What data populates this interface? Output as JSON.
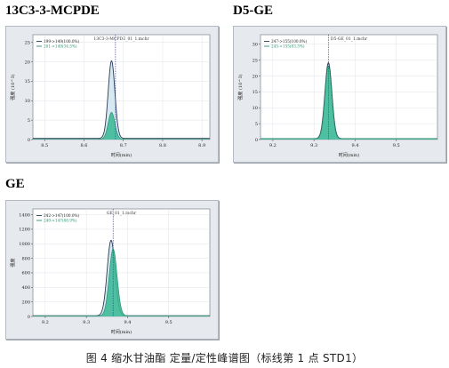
{
  "caption": "图 4 缩水甘油酯 定量/定性峰谱图（标线第 1 点 STD1）",
  "colors": {
    "frame_bg": "#e6e9ee",
    "plot_bg": "#ffffff",
    "quant_fill": "#cfe5ef",
    "quant_line": "#2b3a55",
    "qual_fill": "#3bb894",
    "qual_line": "#2a8f6e",
    "marker": "#3a3aff",
    "grid": "#dfe3ea"
  },
  "chart_data": [
    {
      "type": "area",
      "title": "13C3-3-MCPDE",
      "file_label": "13C3-3-MCPDE_01_1.mchr",
      "xlabel": "时间(min)",
      "ylabel": "强度 (10^3)",
      "xlim": [
        8.47,
        8.92
      ],
      "ylim": [
        0,
        27
      ],
      "xticks": [
        "8.5",
        "8.6",
        "8.7",
        "8.8",
        "8.9"
      ],
      "yticks": [
        "0",
        "5",
        "10",
        "15",
        "20",
        "25"
      ],
      "marker_x": 8.68,
      "grid": true,
      "legend_position": "top-left",
      "series": [
        {
          "name": "199->149(100.0%)",
          "role": "quant",
          "peak_rt": 8.67,
          "peak_height": 20.3,
          "sigma": 0.0085,
          "baseline": 0.3
        },
        {
          "name": "201->149(34.5%)",
          "role": "qual",
          "peak_rt": 8.67,
          "peak_height": 7.0,
          "sigma": 0.0085,
          "baseline": 0.1
        }
      ]
    },
    {
      "type": "area",
      "title": "D5-GE",
      "file_label": "D5-GE_01_1.mchr",
      "xlabel": "时间(min)",
      "ylabel": "强度 (10^3)",
      "xlim": [
        9.17,
        9.6
      ],
      "ylim": [
        0,
        33
      ],
      "xticks": [
        "9.2",
        "9.3",
        "9.4",
        "9.5"
      ],
      "yticks": [
        "0",
        "5",
        "10",
        "15",
        "20",
        "25",
        "30"
      ],
      "marker_x": 9.335,
      "grid": true,
      "legend_position": "top-left",
      "series": [
        {
          "name": "247->155(100.0%)",
          "role": "quant",
          "peak_rt": 9.335,
          "peak_height": 24.2,
          "sigma": 0.0085,
          "baseline": 0.3
        },
        {
          "name": "245->155(83.5%)",
          "role": "qual",
          "peak_rt": 9.335,
          "peak_height": 23.2,
          "sigma": 0.0082,
          "baseline": 0.3
        }
      ]
    },
    {
      "type": "area",
      "title": "GE",
      "file_label": "GE_01_1.mchr",
      "xlabel": "时间(min)",
      "ylabel": "强度",
      "xlim": [
        9.17,
        9.6
      ],
      "ylim": [
        0,
        1480
      ],
      "xticks": [
        "9.2",
        "9.3",
        "9.4",
        "9.5"
      ],
      "yticks": [
        "0",
        "200",
        "400",
        "600",
        "800",
        "1000",
        "1200",
        "1400"
      ],
      "marker_x": 9.365,
      "grid": true,
      "legend_position": "top-left",
      "series": [
        {
          "name": "242->147(100.0%)",
          "role": "quant",
          "peak_rt": 9.36,
          "peak_height": 1050,
          "sigma": 0.0095,
          "baseline": 10
        },
        {
          "name": "240->147(88.9%)",
          "role": "qual",
          "peak_rt": 9.365,
          "peak_height": 930,
          "sigma": 0.0095,
          "baseline": 8
        }
      ]
    }
  ]
}
